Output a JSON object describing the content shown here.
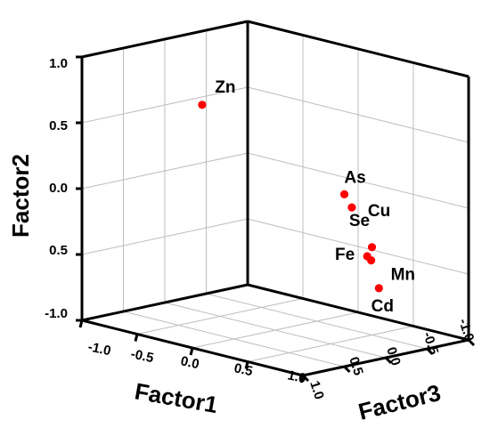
{
  "chart_data": {
    "type": "scatter3d",
    "axes": {
      "factor1": {
        "label": "Factor1",
        "ticks": [
          "-1.0",
          "-0.5",
          "0.0",
          "0.5",
          "1.0"
        ]
      },
      "factor2": {
        "label": "Factor2",
        "ticks": [
          "1.0",
          "0.5",
          "0.0",
          "0.5",
          "-1.0"
        ]
      },
      "factor3": {
        "label": "Factor3",
        "ticks": [
          "1.0",
          "0.5",
          "0.0",
          "-0.5",
          "-1.0"
        ]
      }
    },
    "point_color": "#ff0000",
    "points": [
      {
        "name": "Zn",
        "x": 0.05,
        "y": 0.85,
        "z": 0.95
      },
      {
        "name": "As",
        "x": 0.85,
        "y": 0.25,
        "z": 0.3
      },
      {
        "name": "Cu",
        "x": 0.88,
        "y": 0.15,
        "z": 0.25
      },
      {
        "name": "Fe",
        "x": 0.87,
        "y": -0.25,
        "z": 0.05
      },
      {
        "name": "Mn",
        "x": 0.89,
        "y": -0.28,
        "z": 0.03
      },
      {
        "name": "Cd",
        "x": 0.9,
        "y": -0.5,
        "z": -0.05
      },
      {
        "name": "Se",
        "x": 0.2,
        "y": -0.45,
        "z": -0.9
      }
    ]
  }
}
